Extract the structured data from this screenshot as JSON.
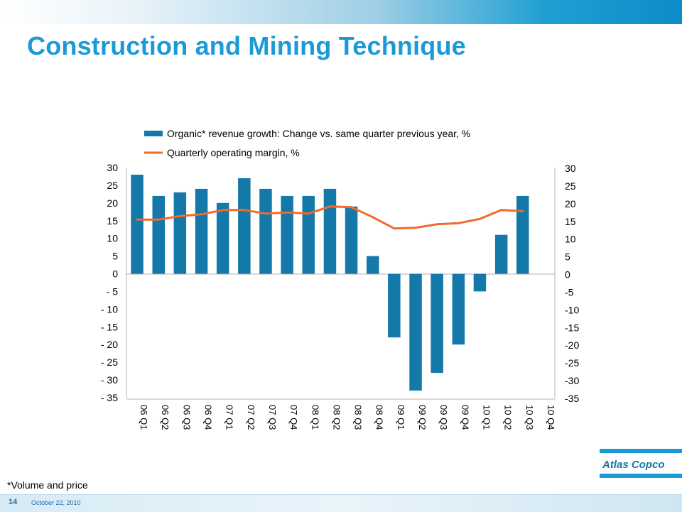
{
  "title": "Construction and Mining Technique",
  "footnote": "*Volume and price",
  "footer": {
    "page_number": "14",
    "date": "October 22, 2010"
  },
  "logo": {
    "text": "Atlas Copco"
  },
  "colors": {
    "bar": "#1479a8",
    "line": "#f26a2a",
    "title": "#1a9ad6"
  },
  "chart_data": {
    "type": "bar",
    "categories": [
      "06 Q1",
      "06 Q2",
      "06 Q3",
      "06 Q4",
      "07 Q1",
      "07 Q2",
      "07 Q3",
      "07 Q4",
      "08 Q1",
      "08 Q2",
      "08 Q3",
      "08 Q4",
      "09 Q1",
      "09 Q2",
      "09 Q3",
      "09 Q4",
      "10 Q1",
      "10 Q2",
      "10 Q3",
      "10 Q4"
    ],
    "series": [
      {
        "name": "Organic* revenue growth: Change vs. same quarter previous year, %",
        "type": "bar",
        "axis": "left",
        "values": [
          28,
          22,
          23,
          24,
          20,
          27,
          24,
          22,
          22,
          24,
          19,
          5,
          -18,
          -33,
          -28,
          -20,
          -5,
          11,
          22,
          null
        ]
      },
      {
        "name": "Quarterly operating margin, %",
        "type": "line",
        "axis": "right",
        "values": [
          15.3,
          15.3,
          16.3,
          16.8,
          18,
          18,
          17,
          17.3,
          17,
          19,
          18.8,
          16,
          12.8,
          13,
          14,
          14.3,
          15.5,
          18,
          17.7,
          null
        ]
      }
    ],
    "ylim": [
      -35,
      30
    ],
    "y_ticks_left": [
      "30",
      "25",
      "20",
      "15",
      "10",
      "5",
      "0",
      "- 5",
      "- 10",
      "- 15",
      "- 20",
      "- 25",
      "- 30",
      "- 35"
    ],
    "y_ticks_right": [
      "30",
      "25",
      "20",
      "15",
      "10",
      "5",
      "0",
      "-5",
      "-10",
      "-15",
      "-20",
      "-25",
      "-30",
      "-35"
    ],
    "legend_position": "top",
    "grid": false
  }
}
